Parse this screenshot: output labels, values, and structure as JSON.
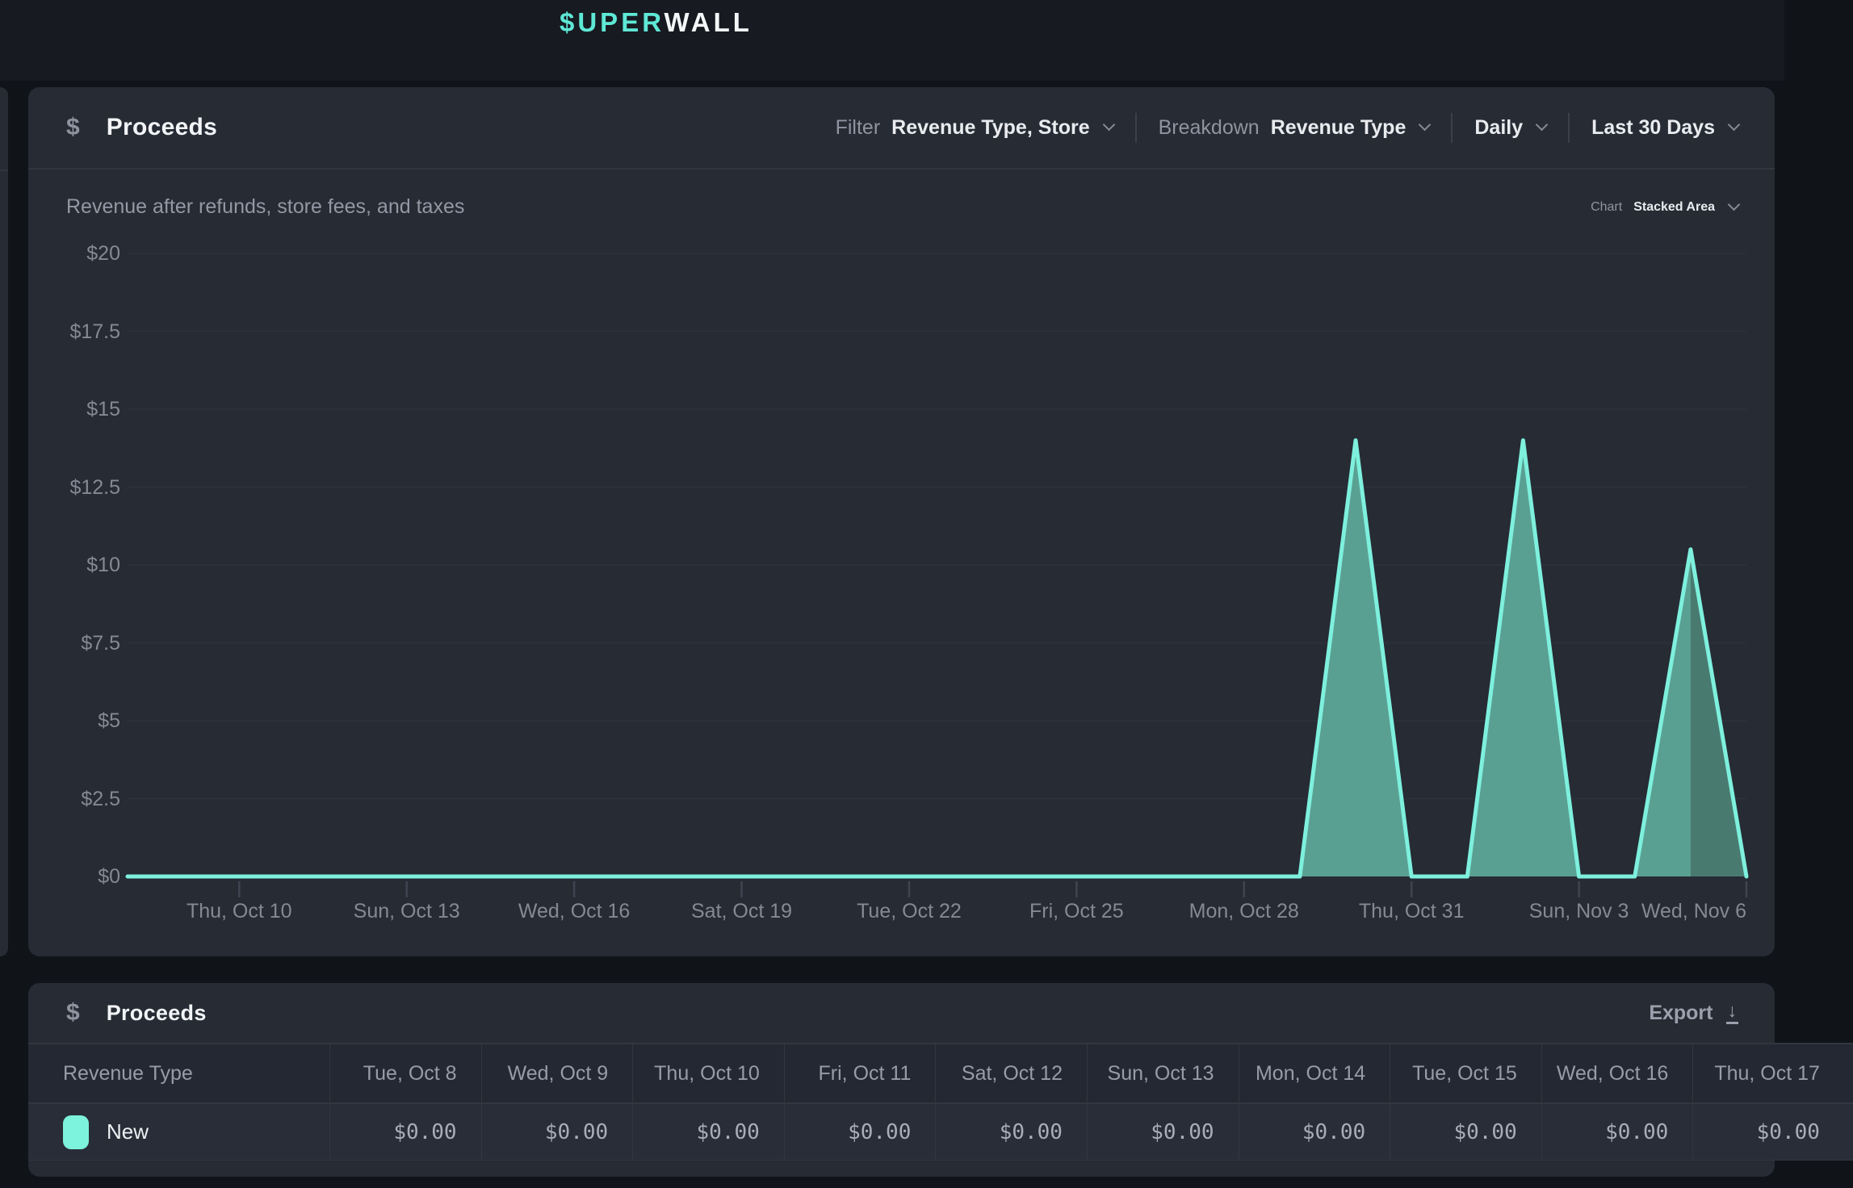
{
  "navbar": {
    "logo_teal": "$UPER",
    "logo_white": "WALL"
  },
  "chart_card": {
    "icon": "$",
    "title": "Proceeds",
    "subtitle": "Revenue after refunds, store fees, and taxes",
    "controls": {
      "filter_label": "Filter",
      "filter_value": "Revenue Type, Store",
      "breakdown_label": "Breakdown",
      "breakdown_value": "Revenue Type",
      "granularity_value": "Daily",
      "range_value": "Last 30 Days",
      "chart_type_label": "Chart",
      "chart_type_value": "Stacked Area"
    }
  },
  "chart_data": {
    "type": "area",
    "title": "Proceeds",
    "subtitle": "Revenue after refunds, store fees, and taxes",
    "ylim": [
      0,
      20
    ],
    "ytick_step": 2.5,
    "y_tick_labels": [
      "$0",
      "$2.5",
      "$5",
      "$7.5",
      "$10",
      "$12.5",
      "$15",
      "$17.5",
      "$20"
    ],
    "grid": "horizontal",
    "legend_position": "table-below",
    "x_range": {
      "start": "Tue, Oct 8",
      "end": "Wed, Nov 6",
      "days": 30
    },
    "x_ticks": [
      {
        "label": "Thu, Oct 10",
        "day": 2
      },
      {
        "label": "Sun, Oct 13",
        "day": 5
      },
      {
        "label": "Wed, Oct 16",
        "day": 8
      },
      {
        "label": "Sat, Oct 19",
        "day": 11
      },
      {
        "label": "Tue, Oct 22",
        "day": 14
      },
      {
        "label": "Fri, Oct 25",
        "day": 17
      },
      {
        "label": "Mon, Oct 28",
        "day": 20
      },
      {
        "label": "Thu, Oct 31",
        "day": 23
      },
      {
        "label": "Sun, Nov 3",
        "day": 26
      },
      {
        "label": "Wed, Nov 6",
        "day": 29
      }
    ],
    "series": [
      {
        "name": "New",
        "stroke_color": "#7ef0dd",
        "fill_color": "#5aa092",
        "legend_color": "#7df2dc",
        "values": [
          0,
          0,
          0,
          0,
          0,
          0,
          0,
          0,
          0,
          0,
          0,
          0,
          0,
          0,
          0,
          0,
          0,
          0,
          0,
          0,
          0,
          0,
          14,
          0,
          0,
          14,
          0,
          0,
          10.5,
          0
        ]
      }
    ],
    "nonzero_points": [
      {
        "date": "Wed, Oct 30",
        "value": 14
      },
      {
        "date": "Sat, Nov 2",
        "value": 14
      },
      {
        "date": "Tue, Nov 5",
        "value": 10.5
      }
    ],
    "overlap_region": {
      "from_day": 28,
      "to_day": 29,
      "fill": "#497a70"
    },
    "gridline_color": "#2d323c",
    "tick_color": "#3f4450"
  },
  "table_card": {
    "icon": "$",
    "title": "Proceeds",
    "export_label": "Export",
    "table": {
      "first_column_header": "Revenue Type",
      "date_headers": [
        "Tue, Oct 8",
        "Wed, Oct 9",
        "Thu, Oct 10",
        "Fri, Oct 11",
        "Sat, Oct 12",
        "Sun, Oct 13",
        "Mon, Oct 14",
        "Tue, Oct 15",
        "Wed, Oct 16",
        "Thu, Oct 17"
      ],
      "rows": [
        {
          "label": "New",
          "swatch_color": "#7df2dc",
          "values": [
            "$0.00",
            "$0.00",
            "$0.00",
            "$0.00",
            "$0.00",
            "$0.00",
            "$0.00",
            "$0.00",
            "$0.00",
            "$0.00"
          ]
        }
      ]
    }
  }
}
